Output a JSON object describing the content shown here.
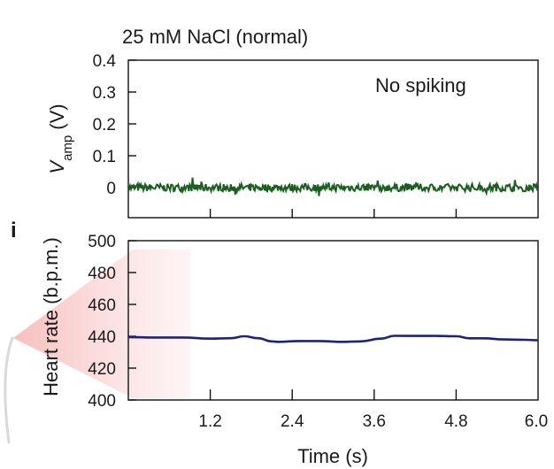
{
  "panel_label": "i",
  "chart_data": [
    {
      "type": "line",
      "title": "25 mM NaCl (normal)",
      "annotation": "No spiking",
      "ylabel_main": "V",
      "ylabel_sub": "amp",
      "ylabel_unit": "(V)",
      "ylim": [
        0,
        0.4
      ],
      "yticks": [
        "0",
        "0.1",
        "0.2",
        "0.3",
        "0.4"
      ],
      "ytick_values": [
        0,
        0.1,
        0.2,
        0.3,
        0.4
      ],
      "xlim": [
        0,
        6.0
      ],
      "xtick_values": [
        1.2,
        2.4,
        3.6,
        4.8
      ],
      "baseline": 0.0,
      "noise_amplitude": 0.012,
      "series": [
        {
          "color": "#1b5e20",
          "x": [
            0,
            0.5,
            1.0,
            1.5,
            2.0,
            2.5,
            3.0,
            3.5,
            4.0,
            4.5,
            5.0,
            5.5,
            6.0
          ],
          "y": [
            0,
            0,
            0,
            0,
            0,
            0,
            0,
            0,
            0,
            0,
            0,
            0,
            0
          ]
        }
      ]
    },
    {
      "type": "line",
      "ylabel": "Heart rate (b.p.m.)",
      "xlabel": "Time (s)",
      "ylim": [
        400,
        500
      ],
      "yticks": [
        "400",
        "420",
        "440",
        "460",
        "480",
        "500"
      ],
      "ytick_values": [
        400,
        420,
        440,
        460,
        480,
        500
      ],
      "xlim": [
        0,
        6.0
      ],
      "xticks": [
        "1.2",
        "2.4",
        "3.6",
        "4.8",
        "6.0"
      ],
      "xtick_values": [
        1.2,
        2.4,
        3.6,
        4.8,
        6.0
      ],
      "series": [
        {
          "color": "#1a237e",
          "x": [
            0,
            0.4,
            0.8,
            1.2,
            1.5,
            1.7,
            1.9,
            2.1,
            2.2,
            2.5,
            2.8,
            3.1,
            3.4,
            3.7,
            3.9,
            4.2,
            4.5,
            4.8,
            5.0,
            5.2,
            5.5,
            5.8,
            6.0
          ],
          "y": [
            439.5,
            439.2,
            439.2,
            438.5,
            438.8,
            440.0,
            438.8,
            436.8,
            436.5,
            437.0,
            437.0,
            436.5,
            436.8,
            438.5,
            440.3,
            440.2,
            440.2,
            440.0,
            438.7,
            438.7,
            438.0,
            437.8,
            437.5
          ]
        }
      ]
    }
  ]
}
